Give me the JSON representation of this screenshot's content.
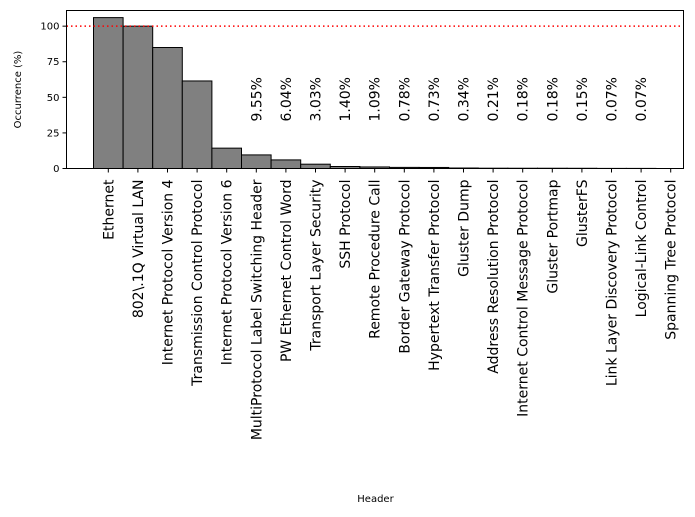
{
  "chart_data": {
    "type": "bar",
    "title": "",
    "xlabel": "Header",
    "ylabel": "Occurrence (%)",
    "ylim": [
      0,
      111
    ],
    "yticks": [
      "0",
      "25",
      "50",
      "75",
      "100"
    ],
    "reference_line": {
      "value": 100,
      "color": "#ff0000",
      "style": "dotted"
    },
    "bar_color": "#808080",
    "edge_color": "#000000",
    "categories": [
      "Ethernet",
      "802\\.1Q Virtual LAN",
      "Internet Protocol Version 4",
      "Transmission Control Protocol",
      "Internet Protocol Version 6",
      "MultiProtocol Label Switching Header",
      "PW Ethernet Control Word",
      "Transport Layer Security",
      "SSH Protocol",
      "Remote Procedure Call",
      "Border Gateway Protocol",
      "Hypertext Transfer Protocol",
      "Gluster Dump",
      "Address Resolution Protocol",
      "Internet Control Message Protocol",
      "Gluster Portmap",
      "GlusterFS",
      "Link Layer Discovery Protocol",
      "Logical-Link Control",
      "Spanning Tree Protocol"
    ],
    "values": [
      106,
      100,
      85,
      61.5,
      14.3,
      9.55,
      6.04,
      3.03,
      1.4,
      1.09,
      0.78,
      0.73,
      0.34,
      0.21,
      0.18,
      0.18,
      0.15,
      0.07,
      0.07,
      0.0
    ],
    "annotations": [
      "",
      "",
      "",
      "",
      "",
      "9.55%",
      "6.04%",
      "3.03%",
      "1.40%",
      "1.09%",
      "0.78%",
      "0.73%",
      "0.34%",
      "0.21%",
      "0.18%",
      "0.18%",
      "0.15%",
      "0.07%",
      "0.07%",
      ""
    ]
  }
}
